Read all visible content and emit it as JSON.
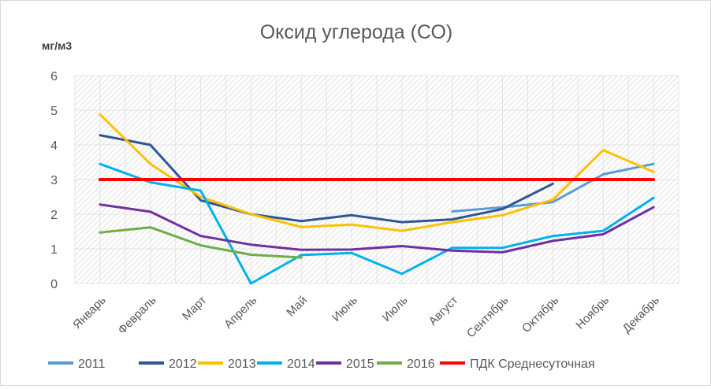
{
  "chart_data": {
    "type": "line",
    "title": "Оксид углерода (СО)",
    "ylabel": "мг/м3",
    "xlabel": "",
    "ylim": [
      0,
      6
    ],
    "yticks": [
      "0",
      "1",
      "2",
      "3",
      "4",
      "5",
      "6"
    ],
    "grid": true,
    "legend_position": "bottom",
    "categories": [
      "Январь",
      "Февраль",
      "Март",
      "Апрель",
      "Май",
      "Июнь",
      "Июль",
      "Август",
      "Сентябрь",
      "Октябрь",
      "Ноябрь",
      "Декабрь"
    ],
    "series": [
      {
        "name": "2011",
        "color": "#5b9bd5",
        "values": [
          null,
          null,
          null,
          null,
          null,
          null,
          null,
          2.08,
          2.2,
          2.35,
          3.15,
          3.45
        ]
      },
      {
        "name": "2012",
        "color": "#2f5597",
        "values": [
          4.28,
          4.0,
          2.4,
          2.0,
          1.8,
          1.97,
          1.77,
          1.85,
          2.15,
          2.88,
          null,
          null
        ]
      },
      {
        "name": "2013",
        "color": "#ffc000",
        "values": [
          4.88,
          3.45,
          2.5,
          2.0,
          1.63,
          1.7,
          1.52,
          1.77,
          1.97,
          2.42,
          3.85,
          3.22
        ]
      },
      {
        "name": "2014",
        "color": "#00b0f0",
        "values": [
          3.45,
          2.92,
          2.68,
          0.0,
          0.82,
          0.88,
          0.28,
          1.03,
          1.03,
          1.37,
          1.52,
          2.47
        ]
      },
      {
        "name": "2015",
        "color": "#7030a0",
        "values": [
          2.28,
          2.07,
          1.37,
          1.12,
          0.97,
          0.98,
          1.08,
          0.95,
          0.9,
          1.23,
          1.42,
          2.2
        ]
      },
      {
        "name": "2016",
        "color": "#70ad47",
        "values": [
          1.47,
          1.62,
          1.1,
          0.83,
          0.75,
          null,
          null,
          null,
          null,
          null,
          null,
          null
        ]
      },
      {
        "name": "ПДК Среднесуточная",
        "color": "#ff0000",
        "values": [
          3,
          3,
          3,
          3,
          3,
          3,
          3,
          3,
          3,
          3,
          3,
          3
        ]
      }
    ]
  }
}
